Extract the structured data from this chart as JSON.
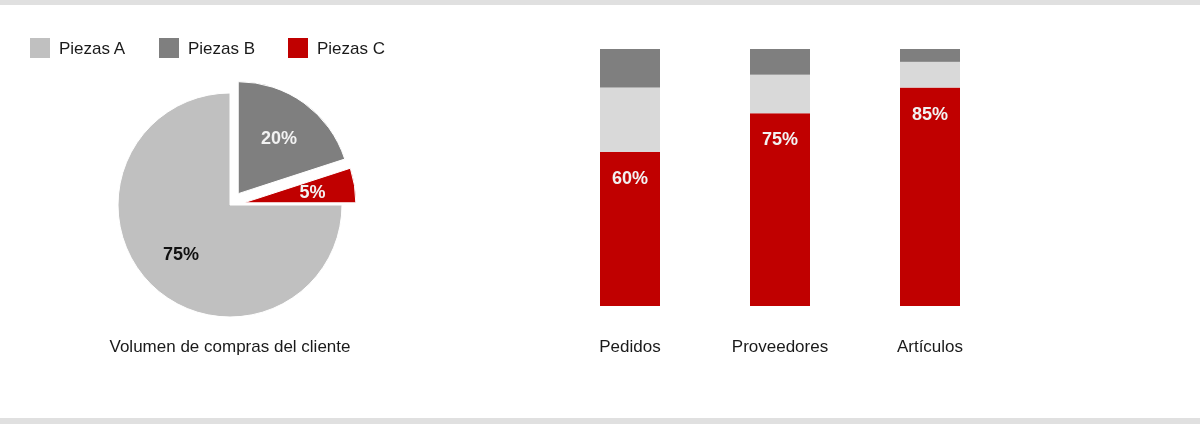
{
  "chart_data": [
    {
      "type": "pie",
      "title": "Volumen de compras del cliente",
      "categories": [
        "Piezas A",
        "Piezas B",
        "Piezas C"
      ],
      "values": [
        75,
        20,
        5
      ],
      "colors": [
        "#c0c0c0",
        "#7f7f7f",
        "#c00000"
      ],
      "value_labels": [
        "75%",
        "20%",
        "5%"
      ],
      "legend": "top"
    },
    {
      "type": "bar",
      "stacked": true,
      "categories": [
        "Pedidos",
        "Proveedores",
        "Artículos"
      ],
      "series": [
        {
          "color": "#c00000",
          "values": [
            60,
            75,
            85
          ],
          "value_labels": [
            "60%",
            "75%",
            "85%"
          ]
        },
        {
          "color": "#d9d9d9",
          "values": [
            25,
            15,
            10
          ]
        },
        {
          "color": "#7f7f7f",
          "values": [
            15,
            10,
            5
          ]
        }
      ]
    }
  ]
}
